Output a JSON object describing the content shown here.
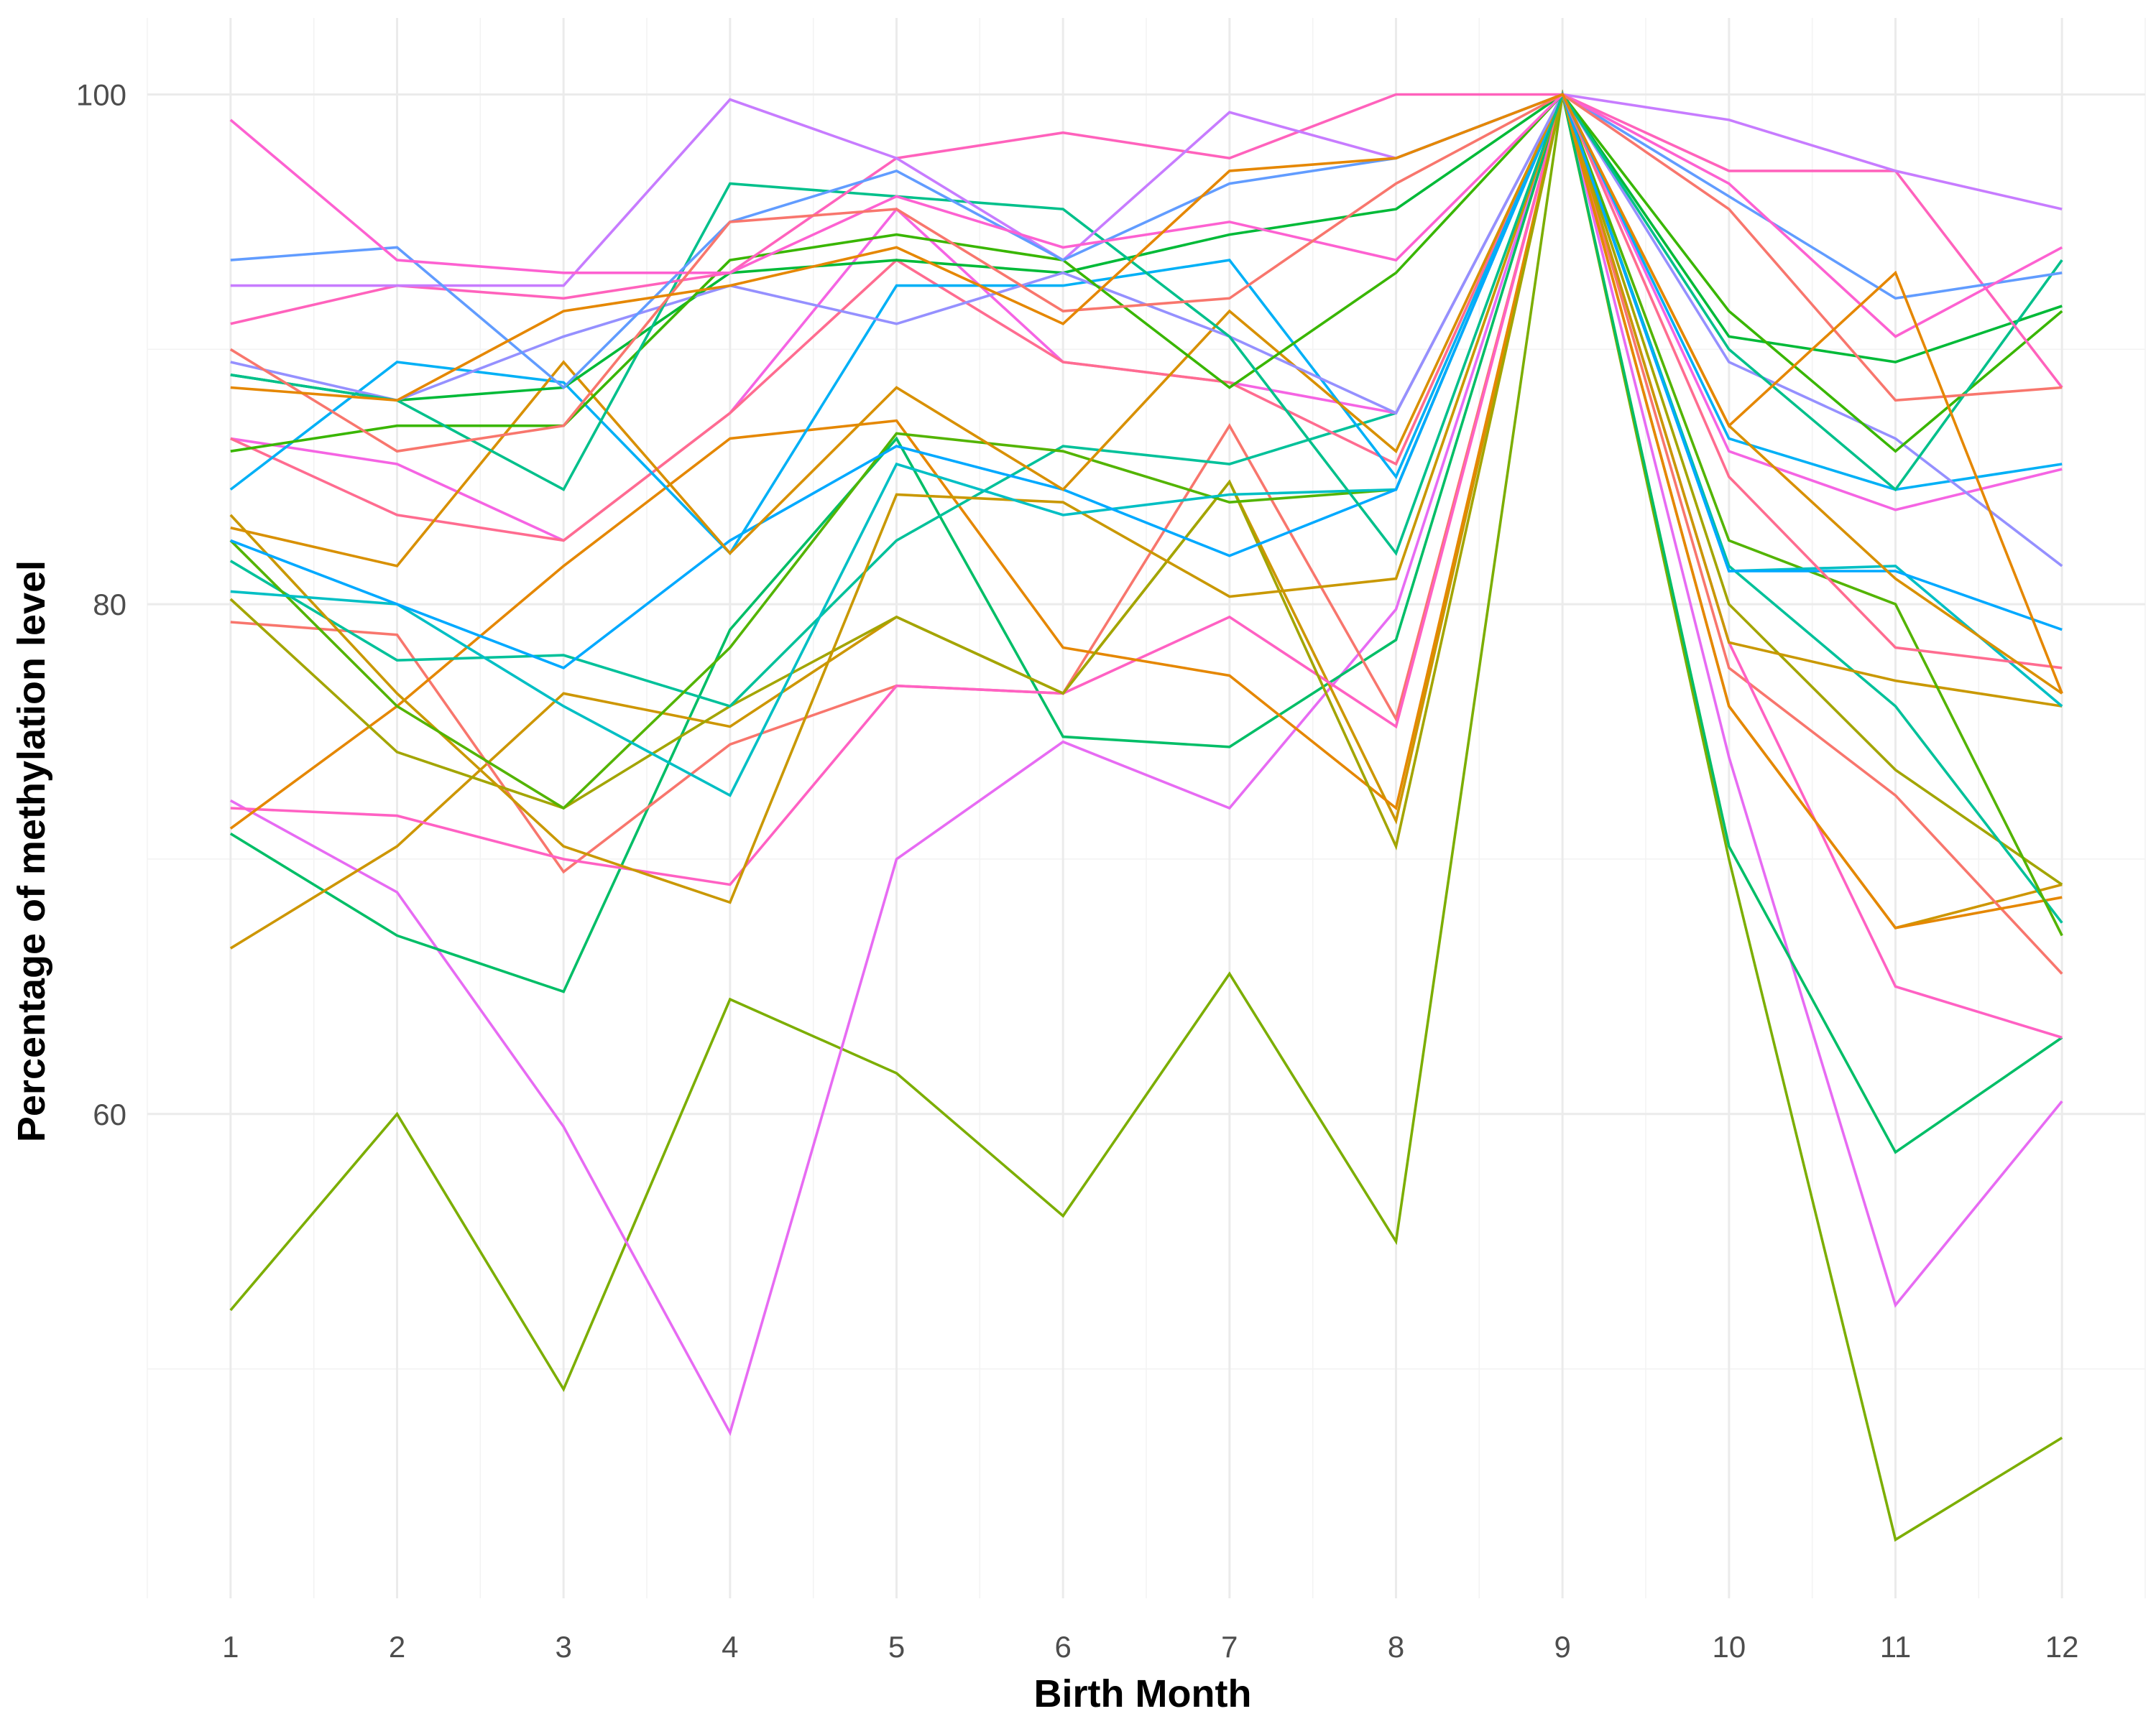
{
  "chart_data": {
    "type": "line",
    "title": "",
    "xlabel": "Birth Month",
    "ylabel": "Percentage of methylation level",
    "x": [
      1,
      2,
      3,
      4,
      5,
      6,
      7,
      8,
      9,
      10,
      11,
      12
    ],
    "xlim": [
      0.5,
      12.5
    ],
    "ylim": [
      41,
      103
    ],
    "x_ticks": [
      "1",
      "2",
      "3",
      "4",
      "5",
      "6",
      "7",
      "8",
      "9",
      "10",
      "11",
      "12"
    ],
    "y_ticks": [
      60,
      80,
      100
    ],
    "grid": true,
    "legend": "none",
    "series": [
      {
        "color": "#7CAE00",
        "values": [
          52.3,
          60.0,
          49.2,
          64.5,
          61.6,
          56.0,
          65.5,
          55.0,
          100,
          70.0,
          43.3,
          47.3
        ]
      },
      {
        "color": "#E76BF3",
        "values": [
          72.3,
          68.7,
          59.5,
          47.5,
          70.0,
          74.6,
          72.0,
          79.8,
          100,
          74.0,
          52.5,
          60.5
        ]
      },
      {
        "color": "#00BE67",
        "values": [
          71.0,
          67.0,
          64.8,
          79.0,
          86.5,
          74.8,
          74.4,
          78.6,
          100,
          70.5,
          58.5,
          63.0
        ]
      },
      {
        "color": "#CD9600",
        "values": [
          66.5,
          70.5,
          76.5,
          75.2,
          79.5,
          76.5,
          84.8,
          71.5,
          100,
          76.0,
          67.3,
          69.0
        ]
      },
      {
        "color": "#F8766D",
        "values": [
          79.3,
          78.8,
          69.5,
          74.5,
          76.8,
          76.5,
          87.0,
          75.5,
          100,
          77.5,
          72.5,
          65.5
        ]
      },
      {
        "color": "#FF61C3",
        "values": [
          72.0,
          71.7,
          70.0,
          69.0,
          76.8,
          76.5,
          79.5,
          75.2,
          100,
          78.5,
          65.0,
          63.0
        ]
      },
      {
        "color": "#E58700",
        "values": [
          71.2,
          76.0,
          81.5,
          86.5,
          87.2,
          78.3,
          77.2,
          72.0,
          100,
          76.0,
          67.3,
          68.5
        ]
      },
      {
        "color": "#A3A500",
        "values": [
          80.2,
          74.2,
          72.0,
          76.0,
          79.5,
          76.5,
          84.8,
          70.5,
          100,
          80.0,
          73.5,
          69.0
        ]
      },
      {
        "color": "#00C19A",
        "values": [
          81.7,
          77.8,
          78.0,
          76.0,
          82.5,
          86.2,
          85.5,
          87.5,
          100,
          81.5,
          76.0,
          67.5
        ]
      },
      {
        "color": "#C99800",
        "values": [
          83.5,
          76.5,
          70.5,
          68.3,
          84.3,
          84.0,
          80.3,
          81.0,
          100,
          78.5,
          77.0,
          76.0
        ]
      },
      {
        "color": "#53B400",
        "values": [
          82.5,
          76.0,
          72.0,
          78.3,
          86.7,
          86.0,
          84.0,
          84.5,
          100,
          82.5,
          80.0,
          67.0
        ]
      },
      {
        "color": "#00BFC4",
        "values": [
          80.5,
          80.0,
          76.0,
          72.5,
          85.5,
          83.5,
          84.3,
          84.5,
          100,
          81.3,
          81.5,
          76.0
        ]
      },
      {
        "color": "#00A9FF",
        "values": [
          82.5,
          80.0,
          77.5,
          82.5,
          86.2,
          84.5,
          81.9,
          84.5,
          100,
          81.3,
          81.3,
          79.0
        ]
      },
      {
        "color": "#F564E3",
        "values": [
          86.5,
          85.5,
          82.5,
          87.5,
          95.5,
          89.5,
          88.7,
          87.5,
          100,
          86.0,
          83.7,
          85.3
        ]
      },
      {
        "color": "#FF6C90",
        "values": [
          86.5,
          83.5,
          82.5,
          87.5,
          93.5,
          89.5,
          88.7,
          85.5,
          100,
          85.0,
          78.3,
          77.5
        ]
      },
      {
        "color": "#00B0F6",
        "values": [
          84.5,
          89.5,
          88.7,
          82.0,
          92.5,
          92.5,
          93.5,
          85.0,
          100,
          86.5,
          84.5,
          85.5
        ]
      },
      {
        "color": "#D89000",
        "values": [
          83.0,
          81.5,
          89.5,
          82.0,
          88.5,
          84.5,
          91.5,
          86.0,
          100,
          87.0,
          81.0,
          76.5
        ]
      },
      {
        "color": "#00BA38",
        "values": [
          89.0,
          88.0,
          88.5,
          93.0,
          93.5,
          93.0,
          94.5,
          95.5,
          100,
          90.5,
          89.5,
          91.7
        ]
      },
      {
        "color": "#9590FF",
        "values": [
          89.5,
          88.0,
          90.5,
          92.5,
          91.0,
          93.0,
          90.5,
          87.5,
          100,
          89.5,
          86.5,
          81.5
        ]
      },
      {
        "color": "#39B600",
        "values": [
          86.0,
          87.0,
          87.0,
          93.5,
          94.5,
          93.5,
          88.5,
          93.0,
          100,
          91.5,
          86.0,
          91.5
        ]
      },
      {
        "color": "#00C08B",
        "values": [
          89.0,
          88.0,
          84.5,
          96.5,
          96.0,
          95.5,
          90.5,
          82.0,
          100,
          90.0,
          84.5,
          93.5
        ]
      },
      {
        "color": "#FF62BC",
        "values": [
          91.0,
          92.5,
          92.0,
          93.0,
          97.5,
          98.5,
          97.5,
          100.0,
          100,
          97.0,
          97.0,
          88.5
        ]
      },
      {
        "color": "#C77CFF",
        "values": [
          92.5,
          92.5,
          92.5,
          99.8,
          97.5,
          93.5,
          99.3,
          97.5,
          100,
          99.0,
          97.0,
          95.5
        ]
      },
      {
        "color": "#619CFF",
        "values": [
          93.5,
          94.0,
          88.5,
          95.0,
          97.0,
          93.5,
          96.5,
          97.5,
          100,
          96.0,
          92.0,
          93.0
        ]
      },
      {
        "color": "#FD61D1",
        "values": [
          99.0,
          93.5,
          93.0,
          93.0,
          96.0,
          94.0,
          95.0,
          93.5,
          100,
          96.5,
          90.5,
          94.0
        ]
      },
      {
        "color": "#F8766D",
        "values": [
          90.0,
          86.0,
          87.0,
          95.0,
          95.5,
          91.5,
          92.0,
          96.5,
          100,
          95.5,
          88.0,
          88.5
        ]
      },
      {
        "color": "#E58700",
        "values": [
          88.5,
          88.0,
          91.5,
          92.5,
          94.0,
          91.0,
          97.0,
          97.5,
          100,
          87.0,
          93.0,
          76.5
        ]
      }
    ]
  }
}
